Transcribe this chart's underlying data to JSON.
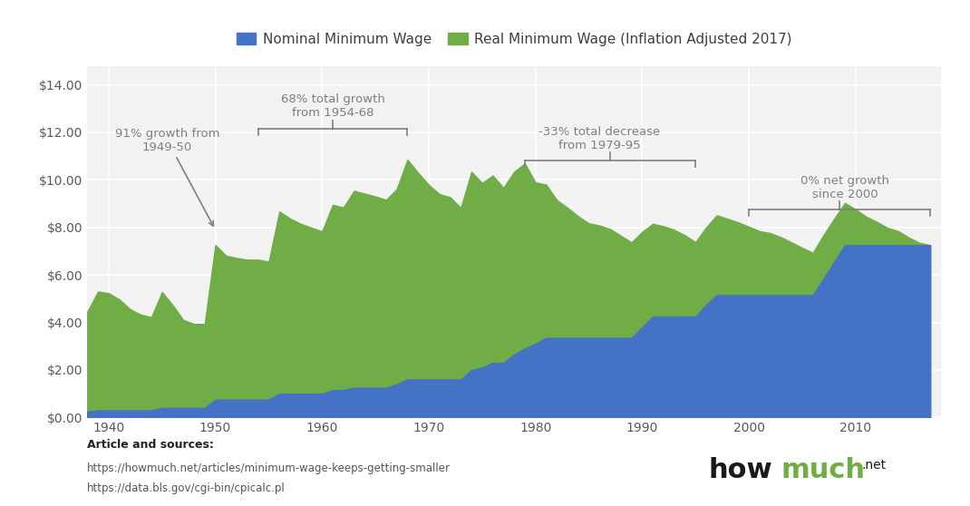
{
  "legend_nominal": "Nominal Minimum Wage",
  "legend_real": "Real Minimum Wage (Inflation Adjusted 2017)",
  "nominal_color": "#4472C4",
  "real_color": "#70AD47",
  "background_color": "#FFFFFF",
  "grid_color": "#FFFFFF",
  "plot_bg_color": "#F2F2F2",
  "ylabel_color": "#595959",
  "xlabel_color": "#595959",
  "annotation_color": "#7F7F7F",
  "ylim": [
    0,
    14.8
  ],
  "xlim": [
    1938,
    2018
  ],
  "yticks": [
    0,
    2,
    4,
    6,
    8,
    10,
    12,
    14
  ],
  "xticks": [
    1940,
    1950,
    1960,
    1970,
    1980,
    1990,
    2000,
    2010
  ],
  "article_text": "Article and sources:",
  "source1": "https://howmuch.net/articles/minimum-wage-keeps-getting-smaller",
  "source2": "https://data.bls.gov/cgi-bin/cpicalc.pl",
  "years": [
    1938,
    1939,
    1940,
    1941,
    1942,
    1943,
    1944,
    1945,
    1946,
    1947,
    1948,
    1949,
    1950,
    1951,
    1952,
    1953,
    1954,
    1955,
    1956,
    1957,
    1958,
    1959,
    1960,
    1961,
    1962,
    1963,
    1964,
    1965,
    1966,
    1967,
    1968,
    1969,
    1970,
    1971,
    1972,
    1973,
    1974,
    1975,
    1976,
    1977,
    1978,
    1979,
    1980,
    1981,
    1982,
    1983,
    1984,
    1985,
    1986,
    1987,
    1988,
    1989,
    1990,
    1991,
    1992,
    1993,
    1994,
    1995,
    1996,
    1997,
    1998,
    1999,
    2000,
    2001,
    2002,
    2003,
    2004,
    2005,
    2006,
    2007,
    2008,
    2009,
    2010,
    2011,
    2012,
    2013,
    2014,
    2015,
    2016,
    2017
  ],
  "nominal": [
    0.25,
    0.3,
    0.3,
    0.3,
    0.3,
    0.3,
    0.3,
    0.4,
    0.4,
    0.4,
    0.4,
    0.4,
    0.75,
    0.75,
    0.75,
    0.75,
    0.75,
    0.75,
    1.0,
    1.0,
    1.0,
    1.0,
    1.0,
    1.15,
    1.15,
    1.25,
    1.25,
    1.25,
    1.25,
    1.4,
    1.6,
    1.6,
    1.6,
    1.6,
    1.6,
    1.6,
    2.0,
    2.1,
    2.3,
    2.3,
    2.65,
    2.9,
    3.1,
    3.35,
    3.35,
    3.35,
    3.35,
    3.35,
    3.35,
    3.35,
    3.35,
    3.35,
    3.8,
    4.25,
    4.25,
    4.25,
    4.25,
    4.25,
    4.75,
    5.15,
    5.15,
    5.15,
    5.15,
    5.15,
    5.15,
    5.15,
    5.15,
    5.15,
    5.15,
    5.85,
    6.55,
    7.25,
    7.25,
    7.25,
    7.25,
    7.25,
    7.25,
    7.25,
    7.25,
    7.25
  ],
  "real": [
    4.45,
    5.3,
    5.23,
    4.97,
    4.56,
    4.33,
    4.22,
    5.28,
    4.73,
    4.1,
    3.94,
    3.93,
    7.26,
    6.81,
    6.71,
    6.64,
    6.64,
    6.56,
    8.67,
    8.37,
    8.15,
    7.99,
    7.83,
    8.95,
    8.84,
    9.54,
    9.42,
    9.3,
    9.16,
    9.61,
    10.85,
    10.3,
    9.79,
    9.4,
    9.27,
    8.82,
    10.34,
    9.87,
    10.18,
    9.67,
    10.34,
    10.69,
    9.89,
    9.8,
    9.15,
    8.83,
    8.47,
    8.17,
    8.08,
    7.93,
    7.65,
    7.37,
    7.81,
    8.15,
    8.05,
    7.9,
    7.67,
    7.38,
    8.0,
    8.51,
    8.36,
    8.21,
    8.03,
    7.84,
    7.76,
    7.59,
    7.37,
    7.14,
    6.93,
    7.68,
    8.37,
    9.03,
    8.76,
    8.45,
    8.23,
    7.98,
    7.84,
    7.57,
    7.35,
    7.25
  ]
}
